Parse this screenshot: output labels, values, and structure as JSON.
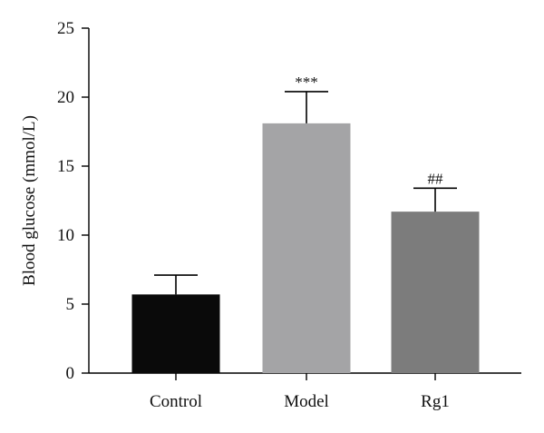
{
  "chart_data": {
    "type": "bar",
    "title": "",
    "xlabel": "",
    "ylabel": "Blood glucose (mmol/L)",
    "ylim": [
      0,
      25
    ],
    "yticks": [
      0,
      5,
      10,
      15,
      20,
      25
    ],
    "grid": false,
    "categories": [
      "Control",
      "Model",
      "Rg1"
    ],
    "values": [
      5.7,
      18.1,
      11.7
    ],
    "error_upper": [
      1.4,
      2.3,
      1.7
    ],
    "annotations": [
      "",
      "***",
      "##"
    ],
    "colors": [
      "#0a0a0a",
      "#a4a4a6",
      "#7c7c7c"
    ]
  }
}
